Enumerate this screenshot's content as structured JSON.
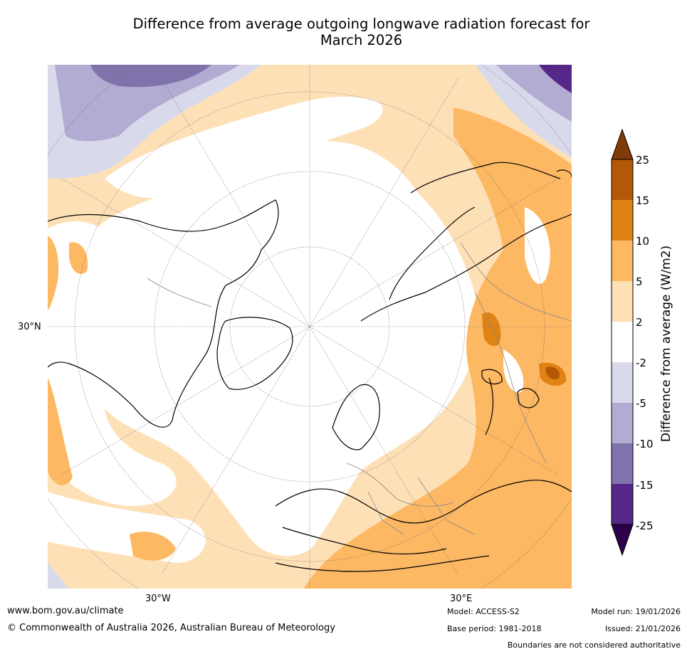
{
  "title_line1": "Difference from average outgoing longwave radiation forecast for",
  "title_line2": "March 2026",
  "map": {
    "lat_labels": [
      "30°N"
    ],
    "lon_labels": [
      "30°W",
      "30°E"
    ]
  },
  "colorbar": {
    "title": "Difference from average (W/m2)",
    "ticks": [
      "25",
      "15",
      "10",
      "5",
      "2",
      "-2",
      "-5",
      "-10",
      "-15",
      "-25"
    ],
    "colors": {
      "over": "#7f3b08",
      "b15_25": "#b35806",
      "b10_15": "#e08214",
      "b5_10": "#fdb863",
      "b2_5": "#fee0b6",
      "neutral": "#ffffff",
      "m2_5": "#d8daeb",
      "m5_10": "#b2abd2",
      "m10_15": "#8073ac",
      "m15_25": "#542788",
      "under": "#2d004b"
    }
  },
  "footer": {
    "url": "www.bom.gov.au/climate",
    "copyright": "© Commonwealth of Australia 2026, Australian Bureau of Meteorology",
    "model": "Model: ACCESS-S2",
    "base_period": "Base period: 1981-2018",
    "model_run": "Model run: 19/01/2026",
    "issued": "Issued: 21/01/2026",
    "disclaimer": "Boundaries are not considered authoritative"
  }
}
